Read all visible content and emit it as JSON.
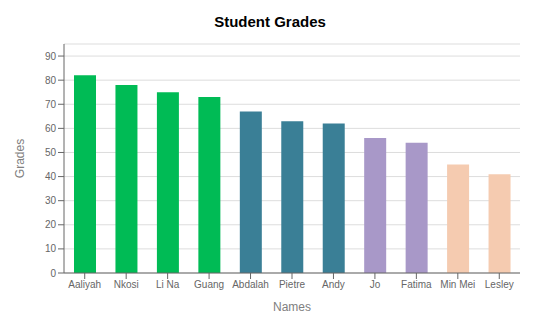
{
  "chart_data": {
    "type": "bar",
    "title": "Student Grades",
    "xlabel": "Names",
    "ylabel": "Grades",
    "categories": [
      "Aaliyah",
      "Nkosi",
      "Li Na",
      "Guang",
      "Abdalah",
      "Pietre",
      "Andy",
      "Jo",
      "Fatima",
      "Min Mei",
      "Lesley"
    ],
    "values": [
      82,
      78,
      75,
      73,
      67,
      63,
      62,
      56,
      54,
      45,
      41
    ],
    "colors": [
      "#00BB55",
      "#00BB55",
      "#00BB55",
      "#00BB55",
      "#3A7F96",
      "#3A7F96",
      "#3A7F96",
      "#A898C8",
      "#A898C8",
      "#F5CBB0",
      "#F5CBB0"
    ],
    "ylim": [
      0,
      95
    ],
    "yticks": [
      0,
      10,
      20,
      30,
      40,
      50,
      60,
      70,
      80,
      90
    ],
    "grid": true
  }
}
